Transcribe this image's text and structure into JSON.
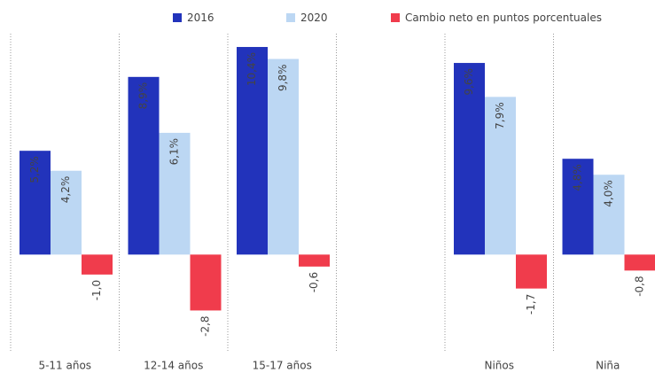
{
  "chart_data": {
    "type": "bar",
    "categories": [
      "5-11 años",
      "12-14 años",
      "15-17 años",
      null,
      "Niños",
      "Niña"
    ],
    "series": [
      {
        "name": "2016",
        "color": "#2233bb",
        "values": [
          5.2,
          8.9,
          10.4,
          null,
          9.6,
          4.8
        ],
        "value_labels": [
          "5,2%",
          "8,9%",
          "10,4%",
          null,
          "9,6%",
          "4,8%"
        ]
      },
      {
        "name": "2020",
        "color": "#bcd7f3",
        "values": [
          4.2,
          6.1,
          9.8,
          null,
          7.9,
          4.0
        ],
        "value_labels": [
          "4,2%",
          "6,1%",
          "9,8%",
          null,
          "7,9%",
          "4,0%"
        ]
      },
      {
        "name": "Cambio neto en puntos porcentuales",
        "color": "#f03c4c",
        "values": [
          -1.0,
          -2.8,
          -0.6,
          null,
          -1.7,
          -0.8
        ],
        "value_labels": [
          "-1,0",
          "-2,8",
          "-0,6",
          null,
          "-1,7",
          "-0,8"
        ]
      }
    ],
    "ylim": [
      -5,
      11.2
    ],
    "grid": false,
    "legend": "top"
  }
}
